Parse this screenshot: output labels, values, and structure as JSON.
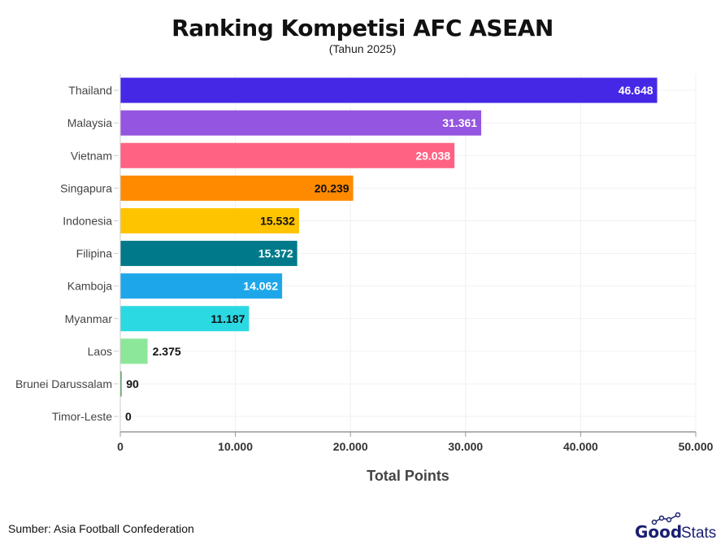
{
  "chart_data": {
    "type": "bar",
    "orientation": "horizontal",
    "title": "Ranking Kompetisi AFC ASEAN",
    "subtitle": "(Tahun 2025)",
    "xlabel": "Total Points",
    "ylabel": "",
    "xlim": [
      0,
      50000
    ],
    "grid": true,
    "categories": [
      "Thailand",
      "Malaysia",
      "Vietnam",
      "Singapura",
      "Indonesia",
      "Filipina",
      "Kamboja",
      "Myanmar",
      "Laos",
      "Brunei Darussalam",
      "Timor-Leste"
    ],
    "values": [
      46648,
      31361,
      29038,
      20239,
      15532,
      15372,
      14062,
      11187,
      2375,
      90,
      0
    ],
    "value_labels": [
      "46.648",
      "31.361",
      "29.038",
      "20.239",
      "15.532",
      "15.372",
      "14.062",
      "11.187",
      "2.375",
      "90",
      "0"
    ],
    "colors": [
      "#4527e6",
      "#9455e0",
      "#ff6282",
      "#ff8a00",
      "#ffc400",
      "#007a8a",
      "#1da7ea",
      "#2bd9e3",
      "#8ce79a",
      "#1a8a2a",
      "#cccccc"
    ],
    "label_colors": [
      "#ffffff",
      "#ffffff",
      "#ffffff",
      "#111111",
      "#111111",
      "#ffffff",
      "#ffffff",
      "#111111",
      "#111111",
      "#111111",
      "#111111"
    ],
    "x_ticks": [
      0,
      10000,
      20000,
      30000,
      40000,
      50000
    ],
    "x_tick_labels": [
      "0",
      "10.000",
      "20.000",
      "30.000",
      "40.000",
      "50.000"
    ]
  },
  "footer": {
    "source": "Sumber: Asia Football Confederation",
    "logo": "GoodStats"
  }
}
